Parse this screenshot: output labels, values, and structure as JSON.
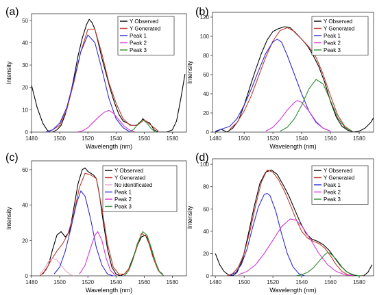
{
  "chart_data": [
    {
      "id": "a",
      "panel_label": "(a)",
      "type": "line",
      "xlabel": "Wavelength (nm)",
      "ylabel": "Intensity",
      "xlim": [
        1480,
        1590
      ],
      "ylim": [
        0,
        53
      ],
      "xticks": [
        1480,
        1500,
        1520,
        1540,
        1560,
        1580
      ],
      "yticks": [
        0,
        10,
        20,
        30,
        40,
        50
      ],
      "legend_position": "top-right",
      "series": [
        {
          "name": "Y Observed",
          "color": "#000000",
          "x": [
            1480,
            1484,
            1488,
            1491,
            1493,
            1495,
            1498,
            1501,
            1504,
            1507,
            1510,
            1513,
            1516,
            1519,
            1521,
            1523,
            1525,
            1527,
            1530,
            1533,
            1536,
            1539,
            1542,
            1545,
            1548,
            1551,
            1554,
            1557,
            1559,
            1561,
            1564,
            1567,
            1570,
            1573,
            1576,
            1580,
            1583,
            1586,
            1589
          ],
          "y": [
            21,
            11,
            4,
            1,
            0,
            0,
            1,
            3,
            8,
            15,
            24,
            34,
            42,
            48,
            50.5,
            49,
            46,
            41,
            33,
            26,
            19,
            13,
            8,
            5,
            4,
            3,
            3,
            4,
            6,
            5,
            4,
            1,
            0,
            0,
            0,
            1,
            5,
            15,
            26
          ]
        },
        {
          "name": "Y Generated",
          "color": "#c0392b",
          "x": [
            1490,
            1495,
            1500,
            1505,
            1510,
            1515,
            1520,
            1525,
            1530,
            1535,
            1540,
            1545,
            1550,
            1555,
            1560,
            1565,
            1570
          ],
          "y": [
            0,
            1,
            3,
            10,
            22,
            36,
            46,
            46,
            35,
            22,
            13,
            6,
            3,
            3,
            5.5,
            3,
            0.5
          ]
        },
        {
          "name": "Peak 1",
          "color": "#2b2bd6",
          "x": [
            1490,
            1495,
            1500,
            1505,
            1510,
            1515,
            1520,
            1525,
            1530,
            1535,
            1540,
            1545,
            1550
          ],
          "y": [
            0,
            1,
            4,
            11,
            23,
            36,
            43.5,
            40,
            28,
            15,
            6,
            2,
            0
          ]
        },
        {
          "name": "Peak 2",
          "color": "#d633d6",
          "x": [
            1512,
            1516,
            1520,
            1524,
            1528,
            1532,
            1535,
            1538,
            1542,
            1546,
            1550,
            1554
          ],
          "y": [
            0,
            0.5,
            2,
            4.5,
            7,
            9,
            9.7,
            8.5,
            5.5,
            2.5,
            0.8,
            0
          ]
        },
        {
          "name": "Peak 3",
          "color": "#2e8b2e",
          "x": [
            1550,
            1553,
            1556,
            1559,
            1562,
            1565,
            1568
          ],
          "y": [
            0,
            1.5,
            4,
            5.5,
            4,
            1.5,
            0
          ]
        }
      ]
    },
    {
      "id": "b",
      "panel_label": "(b)",
      "type": "line",
      "xlabel": "Wavelength (nm)",
      "ylabel": "Intensity",
      "xlim": [
        1478,
        1590
      ],
      "ylim": [
        0,
        125
      ],
      "xticks": [
        1480,
        1500,
        1520,
        1540,
        1560,
        1580
      ],
      "yticks": [
        0,
        20,
        40,
        60,
        80,
        100,
        120
      ],
      "legend_position": "top-right",
      "series": [
        {
          "name": "Y Observed",
          "color": "#000000",
          "x": [
            1480,
            1484,
            1488,
            1492,
            1496,
            1500,
            1504,
            1508,
            1512,
            1516,
            1520,
            1524,
            1528,
            1532,
            1536,
            1540,
            1544,
            1548,
            1552,
            1556,
            1560,
            1564,
            1568,
            1572,
            1576,
            1580,
            1584,
            1588,
            1590
          ],
          "y": [
            0,
            3,
            0,
            4,
            12,
            28,
            47,
            65,
            82,
            96,
            105,
            108,
            110,
            109,
            103,
            97,
            90,
            80,
            68,
            52,
            32,
            16,
            6,
            2,
            0,
            1,
            4,
            10,
            15
          ]
        },
        {
          "name": "Y Generated",
          "color": "#c0392b",
          "x": [
            1490,
            1495,
            1500,
            1505,
            1510,
            1515,
            1520,
            1525,
            1530,
            1535,
            1540,
            1545,
            1550,
            1555,
            1560,
            1565,
            1570,
            1575
          ],
          "y": [
            3,
            10,
            22,
            38,
            58,
            78,
            95,
            106,
            109,
            105,
            97,
            89,
            78,
            60,
            38,
            18,
            6,
            1
          ]
        },
        {
          "name": "Peak 1",
          "color": "#2b2bd6",
          "x": [
            1480,
            1490,
            1495,
            1500,
            1505,
            1510,
            1515,
            1520,
            1523,
            1526,
            1530,
            1535,
            1540,
            1545,
            1550,
            1555,
            1560
          ],
          "y": [
            1,
            6,
            14,
            28,
            45,
            64,
            82,
            94,
            97,
            94,
            80,
            60,
            40,
            22,
            10,
            4,
            1
          ]
        },
        {
          "name": "Peak 2",
          "color": "#d633d6",
          "x": [
            1515,
            1520,
            1525,
            1530,
            1535,
            1537,
            1540,
            1545,
            1550,
            1555,
            1560
          ],
          "y": [
            1,
            5,
            13,
            23,
            31,
            33,
            31,
            22,
            11,
            4,
            1
          ]
        },
        {
          "name": "Peak 3",
          "color": "#2e8b2e",
          "x": [
            1525,
            1530,
            1535,
            1540,
            1545,
            1550,
            1555,
            1560,
            1565,
            1570,
            1575
          ],
          "y": [
            1,
            5,
            14,
            28,
            45,
            55,
            50,
            33,
            15,
            5,
            1
          ]
        }
      ]
    },
    {
      "id": "c",
      "panel_label": "(c)",
      "type": "line",
      "xlabel": "Wavelength (nm)",
      "ylabel": "Intensity",
      "xlim": [
        1480,
        1590
      ],
      "ylim": [
        0,
        65
      ],
      "xticks": [
        1480,
        1500,
        1520,
        1540,
        1560,
        1580
      ],
      "yticks": [
        0,
        20,
        40,
        60
      ],
      "legend_position": "top-right",
      "series": [
        {
          "name": "Y Observed",
          "color": "#000000",
          "x": [
            1488,
            1492,
            1495,
            1498,
            1501,
            1504,
            1507,
            1510,
            1513,
            1516,
            1518,
            1520,
            1522,
            1524,
            1526,
            1528,
            1531,
            1534,
            1537,
            1540,
            1543,
            1546,
            1549,
            1552,
            1555,
            1558,
            1561,
            1564,
            1567,
            1570,
            1573
          ],
          "y": [
            1,
            6,
            15,
            23,
            25,
            22,
            25,
            38,
            52,
            60,
            61,
            59,
            58,
            57,
            55,
            47,
            30,
            15,
            5,
            1,
            0,
            1,
            4,
            10,
            17,
            22,
            23,
            17,
            9,
            3,
            1
          ]
        },
        {
          "name": "Y Generated",
          "color": "#c0392b",
          "x": [
            1486,
            1490,
            1494,
            1498,
            1502,
            1506,
            1510,
            1514,
            1518,
            1522,
            1526,
            1530,
            1534,
            1538,
            1542,
            1546,
            1550,
            1554,
            1558,
            1562,
            1566,
            1570,
            1574
          ],
          "y": [
            0,
            3,
            9,
            14,
            18,
            24,
            35,
            50,
            58,
            57,
            55,
            38,
            18,
            5,
            1,
            1,
            5,
            14,
            24,
            22,
            11,
            3,
            0
          ]
        },
        {
          "name": "No identificated",
          "color": "#f0a0c8",
          "x": [
            1486,
            1489,
            1492,
            1495,
            1498,
            1501,
            1504,
            1507,
            1510
          ],
          "y": [
            1,
            4,
            8,
            10,
            9,
            6,
            3,
            1,
            0
          ]
        },
        {
          "name": "Peak 1",
          "color": "#2b2bd6",
          "x": [
            1496,
            1500,
            1504,
            1508,
            1512,
            1515,
            1518,
            1522,
            1526,
            1530,
            1534,
            1538
          ],
          "y": [
            1,
            5,
            14,
            27,
            41,
            48,
            45,
            32,
            16,
            6,
            1,
            0
          ]
        },
        {
          "name": "Peak 2",
          "color": "#d633d6",
          "x": [
            1514,
            1518,
            1522,
            1525,
            1527,
            1530,
            1533,
            1536,
            1540
          ],
          "y": [
            1,
            6,
            16,
            23,
            25,
            20,
            10,
            3,
            0
          ]
        },
        {
          "name": "Peak 3",
          "color": "#2e8b2e",
          "x": [
            1546,
            1549,
            1552,
            1555,
            1559,
            1562,
            1565,
            1568,
            1571,
            1574
          ],
          "y": [
            0,
            3,
            9,
            18,
            25,
            23,
            16,
            8,
            2,
            0
          ]
        }
      ]
    },
    {
      "id": "d",
      "panel_label": "(d)",
      "type": "line",
      "xlabel": "Wavelength (nm)",
      "ylabel": "Intensity",
      "xlim": [
        1478,
        1590
      ],
      "ylim": [
        0,
        105
      ],
      "xticks": [
        1480,
        1500,
        1520,
        1540,
        1560,
        1580
      ],
      "yticks": [
        0,
        20,
        40,
        60,
        80,
        100
      ],
      "legend_position": "top-right",
      "series": [
        {
          "name": "Y Observed",
          "color": "#000000",
          "x": [
            1480,
            1483,
            1486,
            1489,
            1492,
            1495,
            1499,
            1503,
            1507,
            1511,
            1515,
            1519,
            1523,
            1527,
            1531,
            1535,
            1539,
            1543,
            1547,
            1551,
            1555,
            1559,
            1563,
            1567,
            1571,
            1575,
            1579,
            1583,
            1586,
            1589
          ],
          "y": [
            20,
            10,
            4,
            1,
            0,
            3,
            15,
            38,
            62,
            83,
            93,
            95,
            91,
            82,
            72,
            60,
            48,
            38,
            33,
            31,
            28,
            23,
            16,
            9,
            4,
            1,
            0,
            0,
            3,
            10
          ]
        },
        {
          "name": "Y Generated",
          "color": "#c0392b",
          "x": [
            1488,
            1492,
            1496,
            1500,
            1504,
            1508,
            1512,
            1516,
            1520,
            1524,
            1528,
            1532,
            1536,
            1540,
            1544,
            1548,
            1552,
            1556,
            1560,
            1564,
            1568,
            1572,
            1576
          ],
          "y": [
            0,
            2,
            8,
            20,
            40,
            63,
            84,
            95,
            93,
            86,
            76,
            64,
            51,
            40,
            34,
            31,
            29,
            25,
            18,
            10,
            4,
            1,
            0
          ]
        },
        {
          "name": "Peak 1",
          "color": "#2b2bd6",
          "x": [
            1490,
            1494,
            1498,
            1502,
            1506,
            1510,
            1514,
            1516,
            1518,
            1522,
            1526,
            1530,
            1534,
            1538,
            1542
          ],
          "y": [
            0,
            3,
            10,
            24,
            44,
            62,
            73,
            74,
            72,
            58,
            38,
            20,
            8,
            2,
            0
          ]
        },
        {
          "name": "Peak 2",
          "color": "#d633d6",
          "x": [
            1496,
            1502,
            1508,
            1514,
            1520,
            1526,
            1532,
            1536,
            1540,
            1546,
            1552,
            1558,
            1564,
            1570,
            1576
          ],
          "y": [
            1,
            4,
            10,
            20,
            32,
            44,
            51,
            50,
            45,
            33,
            20,
            10,
            4,
            1,
            0
          ]
        },
        {
          "name": "Peak 3",
          "color": "#2e8b2e",
          "x": [
            1536,
            1540,
            1544,
            1548,
            1552,
            1556,
            1558,
            1560,
            1564,
            1568,
            1572,
            1576,
            1580
          ],
          "y": [
            0,
            1,
            3,
            7,
            13,
            19,
            21,
            20,
            15,
            8,
            3,
            1,
            0
          ]
        }
      ]
    }
  ]
}
